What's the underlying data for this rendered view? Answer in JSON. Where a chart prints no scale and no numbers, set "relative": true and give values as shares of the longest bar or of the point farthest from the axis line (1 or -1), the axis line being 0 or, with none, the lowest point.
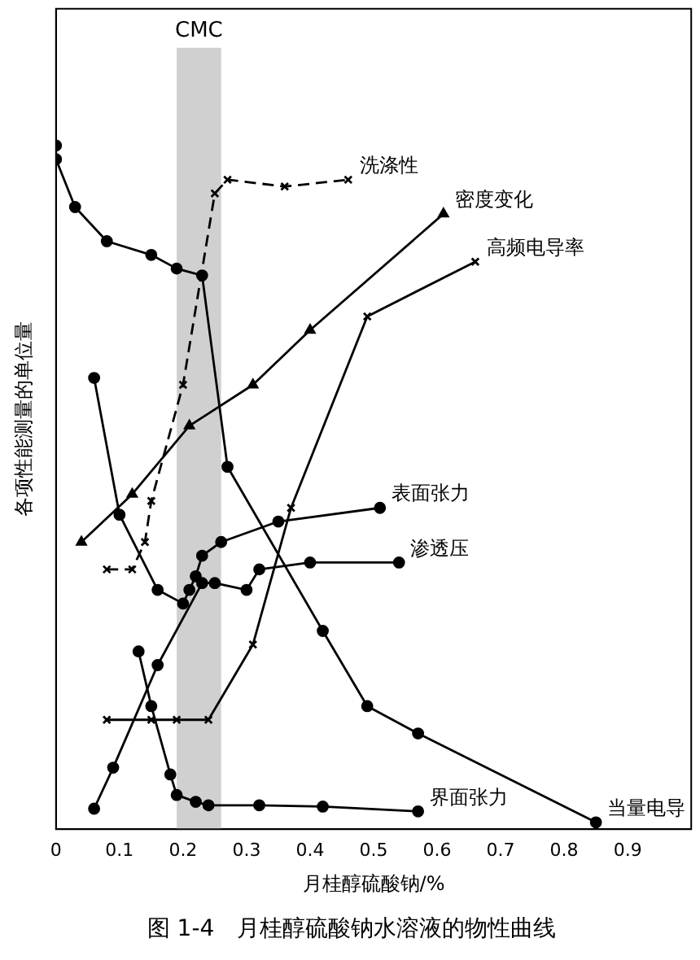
{
  "chart_data": {
    "type": "line",
    "relative": true,
    "title": "图 1-4　月桂醇硫酸钠水溶液的物性曲线",
    "xlabel": "月桂醇硫酸钠/%",
    "ylabel": "各项性能测量的单位量",
    "xlim": [
      0,
      1
    ],
    "xticks": [
      0,
      0.1,
      0.2,
      0.3,
      0.4,
      0.5,
      0.6,
      0.7,
      0.8,
      0.9
    ],
    "bands": [
      {
        "axis": "x",
        "from": 0.19,
        "to": 0.26,
        "label": "CMC",
        "color": "#d0d0d0"
      }
    ],
    "grid": false,
    "legend": false,
    "series": [
      {
        "name": "当量电导",
        "color": "#000000",
        "marker": "circle",
        "x": [
          0,
          0,
          0.03,
          0.08,
          0.15,
          0.19,
          0.23,
          0.27,
          0.42,
          0.49,
          0.57,
          0.85
        ],
        "values": [
          1,
          0.98,
          0.91,
          0.86,
          0.84,
          0.82,
          0.81,
          0.53,
          0.29,
          0.18,
          0.14,
          0.01
        ]
      },
      {
        "name": "洗涤性",
        "color": "#000000",
        "marker": "cross",
        "line_style": "dashed",
        "x": [
          0.08,
          0.12,
          0.14,
          0.15,
          0.2,
          0.25,
          0.27,
          0.36,
          0.46
        ],
        "values": [
          0.38,
          0.38,
          0.42,
          0.48,
          0.65,
          0.93,
          0.95,
          0.94,
          0.95
        ]
      },
      {
        "name": "密度变化",
        "color": "#000000",
        "marker": "triangle",
        "x": [
          0.04,
          0.12,
          0.21,
          0.31,
          0.4,
          0.61
        ],
        "values": [
          0.42,
          0.49,
          0.59,
          0.65,
          0.73,
          0.9
        ]
      },
      {
        "name": "高频电导率",
        "color": "#000000",
        "marker": "cross",
        "x": [
          0.08,
          0.15,
          0.19,
          0.24,
          0.31,
          0.37,
          0.49,
          0.66
        ],
        "values": [
          0.16,
          0.16,
          0.16,
          0.16,
          0.27,
          0.47,
          0.75,
          0.83
        ]
      },
      {
        "name": "表面张力",
        "color": "#000000",
        "marker": "circle",
        "x": [
          0.06,
          0.1,
          0.16,
          0.2,
          0.21,
          0.22,
          0.23,
          0.26,
          0.35,
          0.51
        ],
        "values": [
          0.66,
          0.46,
          0.35,
          0.33,
          0.35,
          0.37,
          0.4,
          0.42,
          0.45,
          0.47
        ]
      },
      {
        "name": "渗透压",
        "color": "#000000",
        "marker": "circle",
        "x": [
          0.06,
          0.09,
          0.16,
          0.23,
          0.25,
          0.3,
          0.32,
          0.4,
          0.54
        ],
        "values": [
          0.03,
          0.09,
          0.24,
          0.36,
          0.36,
          0.35,
          0.38,
          0.39,
          0.39
        ]
      },
      {
        "name": "界面张力",
        "color": "#000000",
        "marker": "circle",
        "x": [
          0.13,
          0.15,
          0.18,
          0.19,
          0.22,
          0.24,
          0.32,
          0.42,
          0.57
        ],
        "values": [
          0.26,
          0.18,
          0.08,
          0.05,
          0.04,
          0.035,
          0.035,
          0.033,
          0.026
        ]
      }
    ]
  }
}
